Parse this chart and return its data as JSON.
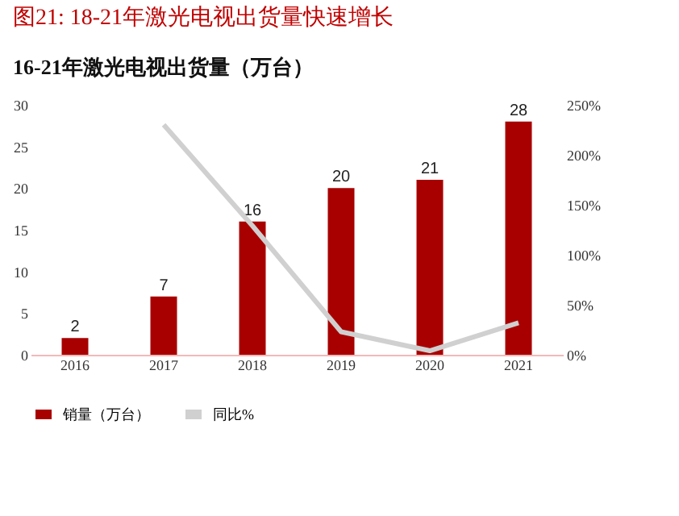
{
  "chart_data": {
    "type": "bar",
    "title": "图21:    18-21年激光电视出货量快速增长",
    "subtitle": "16-21年激光电视出货量（万台）",
    "categories": [
      "2016",
      "2017",
      "2018",
      "2019",
      "2020",
      "2021"
    ],
    "series": [
      {
        "name": "销量（万台）",
        "color": "#a80000",
        "values": [
          2,
          7,
          16,
          20,
          21,
          28
        ],
        "value_labels": [
          "2",
          "7",
          "16",
          "20",
          "21",
          "28"
        ]
      },
      {
        "name": "同比%",
        "type": "line",
        "axis": "y2",
        "color": "#d0d0d0",
        "values": [
          null,
          230,
          129,
          23,
          4,
          32
        ]
      }
    ],
    "ylim": [
      0,
      30
    ],
    "yticks": [
      0,
      5,
      10,
      15,
      20,
      25,
      30
    ],
    "y2lim": [
      0,
      250
    ],
    "y2ticks": [
      {
        "value": 0,
        "label": "0%"
      },
      {
        "value": 50,
        "label": "50%"
      },
      {
        "value": 100,
        "label": "100%"
      },
      {
        "value": 150,
        "label": "150%"
      },
      {
        "value": 200,
        "label": "200%"
      },
      {
        "value": 250,
        "label": "250%"
      }
    ],
    "grid": false,
    "legend": "bottom",
    "marker": "none",
    "line_style": "solid"
  }
}
